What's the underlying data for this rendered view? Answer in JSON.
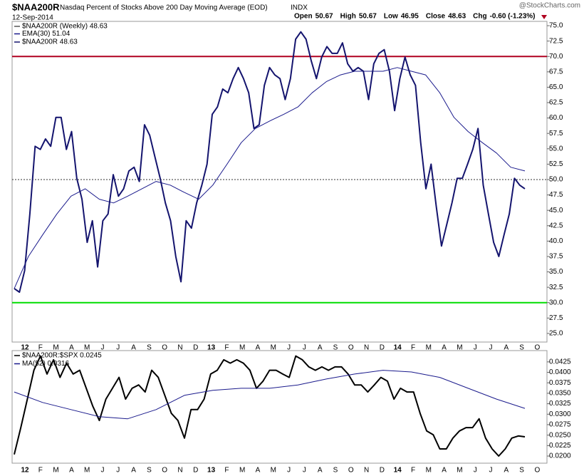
{
  "header": {
    "symbol": "$NAA200R",
    "name": "Nasdaq Percent of Stocks Above 200 Day Moving Average (EOD)",
    "exchange": "INDX",
    "date": "12-Sep-2014",
    "watermark": "@StockCharts.com",
    "quote": [
      {
        "label": "Open",
        "value": "50.67"
      },
      {
        "label": "High",
        "value": "50.67"
      },
      {
        "label": "Low",
        "value": "46.95"
      },
      {
        "label": "Close",
        "value": "48.63"
      },
      {
        "label": "Chg",
        "value": "-0.60 (-1.23%)"
      }
    ]
  },
  "x_axis_labels": [
    "12",
    "F",
    "M",
    "A",
    "M",
    "J",
    "J",
    "A",
    "S",
    "O",
    "N",
    "D",
    "13",
    "F",
    "M",
    "A",
    "M",
    "J",
    "J",
    "A",
    "S",
    "O",
    "N",
    "D",
    "14",
    "F",
    "M",
    "A",
    "M",
    "J",
    "J",
    "A",
    "S",
    "O"
  ],
  "chart_data": [
    {
      "type": "line",
      "legend_title": "$NAA200R (Weekly) 48.63",
      "ylim": [
        23.6,
        75.7
      ],
      "yticks": [
        {
          "value": 25,
          "label": "25.0"
        },
        {
          "value": 27.5,
          "label": "27.5"
        },
        {
          "value": 30,
          "label": "30.0"
        },
        {
          "value": 32.5,
          "label": "32.5"
        },
        {
          "value": 35,
          "label": "35.0"
        },
        {
          "value": 37.5,
          "label": "37.5"
        },
        {
          "value": 40,
          "label": "40.0"
        },
        {
          "value": 42.5,
          "label": "42.5"
        },
        {
          "value": 45,
          "label": "45.0"
        },
        {
          "value": 47.5,
          "label": "47.5"
        },
        {
          "value": 50,
          "label": "50.0"
        },
        {
          "value": 52.5,
          "label": "52.5"
        },
        {
          "value": 55,
          "label": "55.0"
        },
        {
          "value": 57.5,
          "label": "57.5"
        },
        {
          "value": 60,
          "label": "60.0"
        },
        {
          "value": 62.5,
          "label": "62.5"
        },
        {
          "value": 65,
          "label": "65.0"
        },
        {
          "value": 67.5,
          "label": "67.5"
        },
        {
          "value": 70,
          "label": "70.0"
        },
        {
          "value": 72.5,
          "label": "72.5"
        },
        {
          "value": 75,
          "label": "75.0"
        }
      ],
      "hlines": [
        {
          "value": 70,
          "color": "#b00020",
          "width": 2,
          "dash": false
        },
        {
          "value": 30,
          "color": "#00dd00",
          "width": 2,
          "dash": false
        },
        {
          "value": 50,
          "color": "#333333",
          "width": 1,
          "dash": true
        }
      ],
      "series": [
        {
          "name": "EMA(30) 51.04",
          "color": "#1a1a8c",
          "width": 1,
          "values": [
            32.3,
            37.5,
            41.0,
            44.4,
            47.3,
            48.5,
            46.8,
            46.2,
            47.3,
            48.5,
            49.7,
            49.1,
            47.9,
            46.8,
            49.1,
            52.5,
            56.0,
            58.3,
            59.5,
            60.6,
            61.8,
            64.1,
            65.9,
            67.0,
            67.6,
            67.6,
            67.6,
            68.2,
            67.6,
            67.0,
            64.1,
            60.1,
            57.8,
            56.0,
            54.3,
            52.0,
            51.4
          ]
        },
        {
          "name": "$NAA200R 48.63",
          "color": "#14146e",
          "width": 2,
          "values": [
            32.3,
            31.7,
            35.2,
            44.4,
            55.4,
            54.9,
            56.6,
            55.4,
            60.1,
            60.1,
            54.9,
            57.8,
            50.2,
            46.8,
            39.8,
            43.3,
            35.8,
            43.3,
            44.4,
            50.8,
            47.3,
            48.5,
            51.4,
            52.0,
            49.7,
            58.9,
            57.2,
            53.7,
            50.2,
            46.2,
            43.3,
            37.5,
            33.4,
            43.3,
            42.1,
            46.2,
            49.1,
            52.5,
            60.6,
            61.8,
            64.7,
            64.1,
            66.4,
            68.2,
            66.4,
            64.1,
            58.3,
            58.9,
            65.3,
            68.2,
            67.0,
            66.4,
            63.0,
            66.4,
            72.8,
            74.0,
            72.8,
            69.3,
            66.4,
            69.9,
            71.6,
            70.5,
            70.5,
            72.2,
            68.8,
            67.6,
            68.2,
            67.6,
            63.0,
            68.8,
            70.5,
            71.1,
            67.6,
            61.2,
            66.4,
            69.9,
            67.0,
            65.3,
            56.0,
            48.5,
            52.5,
            45.6,
            39.2,
            42.7,
            46.2,
            50.2,
            50.2,
            52.5,
            54.9,
            58.3,
            49.1,
            44.4,
            39.8,
            37.5,
            41.0,
            44.4,
            50.2,
            49.1,
            48.5
          ]
        }
      ]
    },
    {
      "type": "line",
      "ylim": [
        0.0183,
        0.0452
      ],
      "yticks": [
        {
          "value": 0.02,
          "label": "0.0200"
        },
        {
          "value": 0.0225,
          "label": "0.0225"
        },
        {
          "value": 0.025,
          "label": "0.0250"
        },
        {
          "value": 0.0275,
          "label": "0.0275"
        },
        {
          "value": 0.03,
          "label": "0.0300"
        },
        {
          "value": 0.0325,
          "label": "0.0325"
        },
        {
          "value": 0.035,
          "label": "0.0350"
        },
        {
          "value": 0.0375,
          "label": "0.0375"
        },
        {
          "value": 0.04,
          "label": "0.0400"
        },
        {
          "value": 0.0425,
          "label": "0.0425"
        }
      ],
      "series": [
        {
          "name": "$NAA200R:$SPX 0.0245",
          "color": "#000000",
          "width": 2,
          "values": [
            0.0204,
            0.0268,
            0.0336,
            0.0405,
            0.0439,
            0.0396,
            0.043,
            0.0388,
            0.0422,
            0.0396,
            0.0405,
            0.0362,
            0.0319,
            0.0285,
            0.0336,
            0.0362,
            0.0388,
            0.0336,
            0.0362,
            0.037,
            0.0353,
            0.0405,
            0.0388,
            0.0345,
            0.0302,
            0.0285,
            0.0243,
            0.0311,
            0.0311,
            0.0336,
            0.0396,
            0.0405,
            0.043,
            0.0422,
            0.043,
            0.0422,
            0.0405,
            0.0362,
            0.0379,
            0.0405,
            0.0405,
            0.0396,
            0.0388,
            0.0439,
            0.043,
            0.0413,
            0.0405,
            0.0413,
            0.0405,
            0.0413,
            0.0413,
            0.0396,
            0.037,
            0.037,
            0.0353,
            0.037,
            0.0388,
            0.0379,
            0.0336,
            0.0362,
            0.0353,
            0.0353,
            0.0302,
            0.026,
            0.0251,
            0.0217,
            0.0217,
            0.0243,
            0.026,
            0.0268,
            0.0268,
            0.0289,
            0.0243,
            0.0217,
            0.02,
            0.0217,
            0.0243,
            0.0248,
            0.0246
          ]
        },
        {
          "name": "MA(52) 0.0316",
          "color": "#1a1a8c",
          "width": 1,
          "values": [
            0.0353,
            0.0328,
            0.0311,
            0.0294,
            0.0289,
            0.0311,
            0.0345,
            0.0357,
            0.0362,
            0.0362,
            0.037,
            0.0384,
            0.0396,
            0.0405,
            0.0401,
            0.0388,
            0.0362,
            0.0336,
            0.0314
          ]
        }
      ]
    }
  ]
}
